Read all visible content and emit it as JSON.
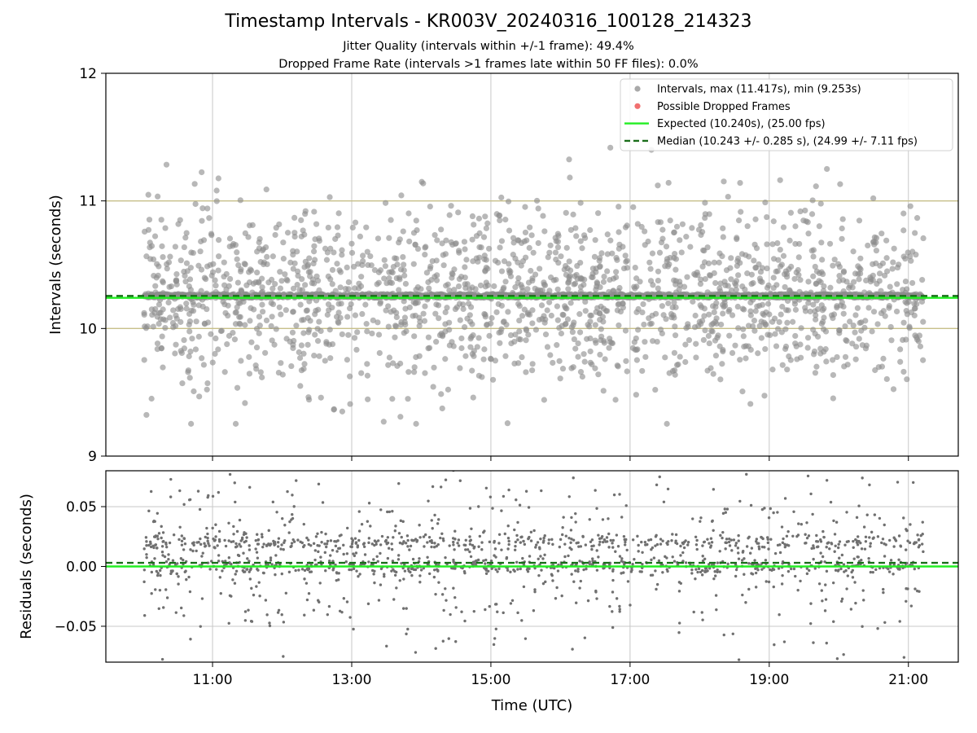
{
  "figure": {
    "title": "Timestamp Intervals - KR003V_20240316_100128_214323",
    "subtitle_1": "Jitter Quality (intervals within +/-1 frame): 49.4%",
    "subtitle_2": "Dropped Frame Rate (intervals >1 frames late within 50 FF files): 0.0%"
  },
  "chart_data": [
    {
      "type": "scatter",
      "panel": "top",
      "title": "",
      "xlabel": "",
      "ylabel": "Intervals (seconds)",
      "xlim": [
        "09:28",
        "21:43"
      ],
      "ylim": [
        9,
        12
      ],
      "yticks": [
        9,
        10,
        11,
        12
      ],
      "ytick_labels": [
        "9",
        "10",
        "11",
        "12"
      ],
      "xticks": [
        "11:00",
        "13:00",
        "15:00",
        "17:00",
        "19:00",
        "21:00"
      ],
      "grid": true,
      "legend_position": "top-right",
      "reference_lines": [
        {
          "y": 10.0,
          "color": "#c8c08a",
          "style": "solid"
        },
        {
          "y": 11.0,
          "color": "#c8c08a",
          "style": "solid"
        }
      ],
      "series": [
        {
          "name": "Intervals, max (11.417s), min (9.253s)",
          "kind": "points",
          "color": "#8c8c8c",
          "x_start": "10:01",
          "x_end": "21:13",
          "max": 11.417,
          "min": 9.253,
          "central_band": [
            10.24,
            10.27
          ],
          "scatter_spread": [
            9.253,
            11.417
          ]
        },
        {
          "name": "Possible Dropped Frames",
          "kind": "points",
          "color": "#f06060",
          "count": 0
        },
        {
          "name": "Expected (10.240s), (25.00 fps)",
          "kind": "hline",
          "y": 10.24,
          "color": "#22ee22",
          "style": "solid"
        },
        {
          "name": "Median (10.243 +/- 0.285 s), (24.99 +/- 7.11 fps)",
          "kind": "hline",
          "y": 10.243,
          "color": "#1a6e1a",
          "style": "dashed"
        }
      ]
    },
    {
      "type": "scatter",
      "panel": "bottom",
      "title": "",
      "xlabel": "Time (UTC)",
      "ylabel": "Residuals (seconds)",
      "xlim": [
        "09:28",
        "21:43"
      ],
      "ylim": [
        -0.08,
        0.08
      ],
      "yticks": [
        -0.05,
        0.0,
        0.05
      ],
      "ytick_labels": [
        "−0.05",
        "0.00",
        "0.05"
      ],
      "xticks": [
        "11:00",
        "13:00",
        "15:00",
        "17:00",
        "19:00",
        "21:00"
      ],
      "xtick_labels": [
        "11:00",
        "13:00",
        "15:00",
        "17:00",
        "19:00",
        "21:00"
      ],
      "grid": true,
      "series": [
        {
          "kind": "points",
          "color": "#707070",
          "x_start": "10:01",
          "x_end": "21:13",
          "clusters": [
            0.0,
            0.02
          ],
          "scatter_spread": [
            -0.08,
            0.08
          ]
        },
        {
          "kind": "hline",
          "y": 0.0,
          "color": "#22ee22",
          "style": "solid"
        },
        {
          "kind": "hline",
          "y": 0.003,
          "color": "#1a6e1a",
          "style": "dashed"
        }
      ]
    }
  ]
}
